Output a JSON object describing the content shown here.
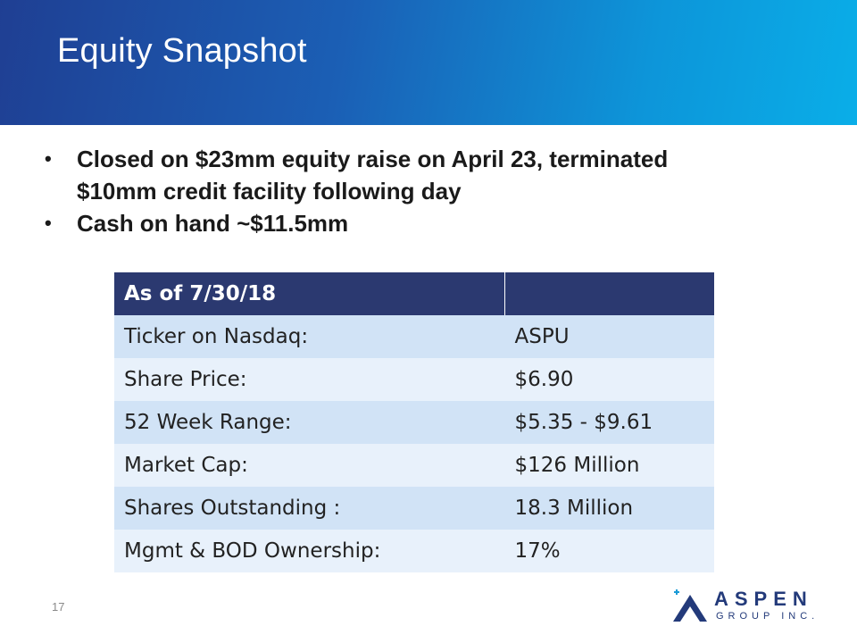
{
  "header": {
    "title": "Equity Snapshot"
  },
  "bullets": [
    "Closed on $23mm equity raise on April 23, terminated $10mm credit facility following day",
    "Cash on hand ~$11.5mm"
  ],
  "table": {
    "header": [
      "As of 7/30/18",
      ""
    ],
    "rows": [
      {
        "label": "Ticker on Nasdaq:",
        "value": "ASPU"
      },
      {
        "label": "Share Price:",
        "value": "$6.90"
      },
      {
        "label": "52 Week Range:",
        "value": "$5.35 - $9.61"
      },
      {
        "label": "Market Cap:",
        "value": "$126 Million"
      },
      {
        "label": "Shares Outstanding :",
        "value": "18.3 Million"
      },
      {
        "label": "Mgmt & BOD Ownership:",
        "value": "17%"
      }
    ]
  },
  "footer": {
    "slide_number": "17",
    "logo_text": "ASPEN",
    "logo_subtext": "GROUP INC."
  },
  "colors": {
    "banner_start": "#1f3f93",
    "banner_end": "#0aaee8",
    "table_header": "#2b3970",
    "row_odd": "#d1e3f6",
    "row_even": "#e8f1fb",
    "logo": "#233a7a"
  }
}
